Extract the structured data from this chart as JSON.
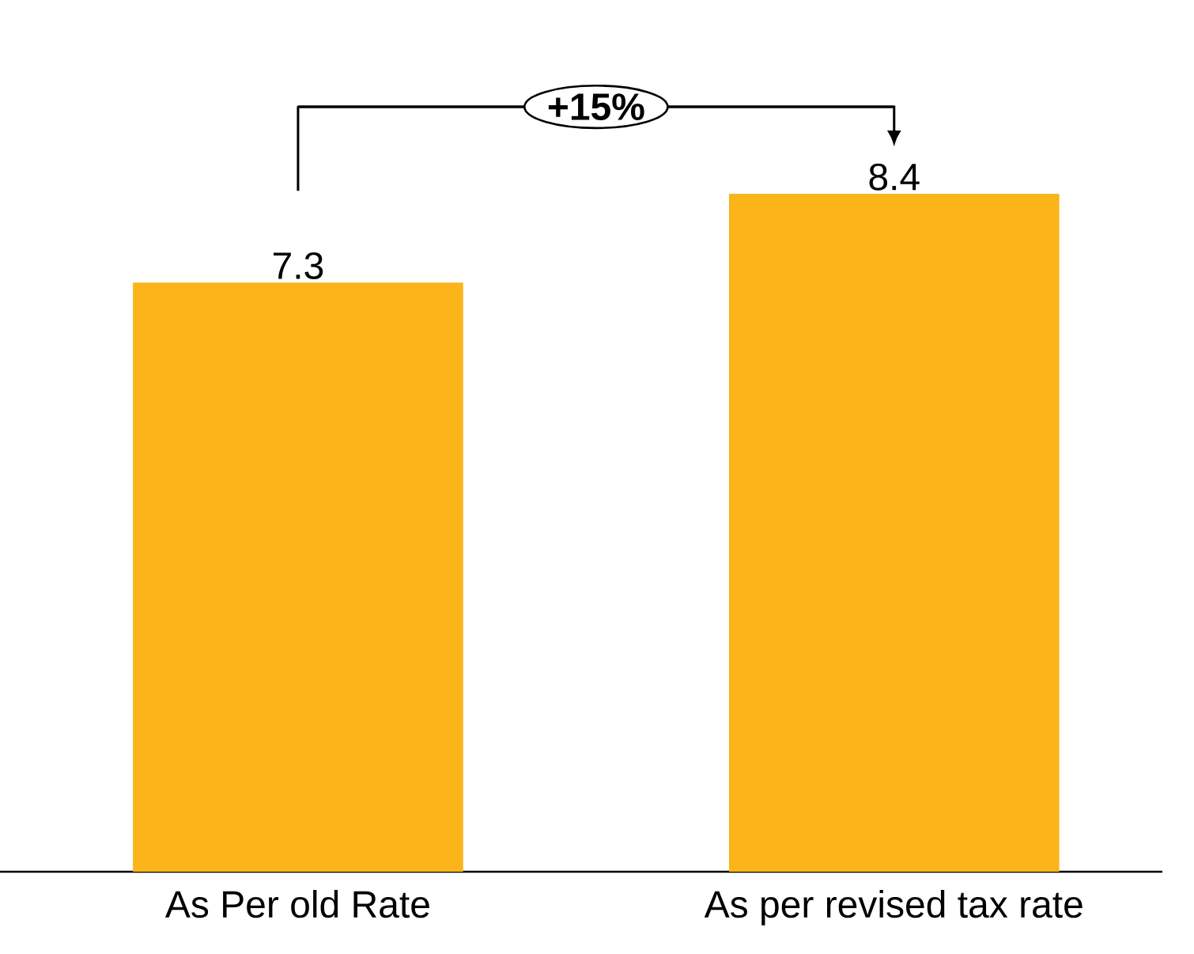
{
  "chart_data": {
    "type": "bar",
    "categories": [
      "As Per old Rate",
      "As per revised tax rate"
    ],
    "values": [
      7.3,
      8.4
    ],
    "color": "#fbb41a",
    "data_labels": true,
    "annotations": [
      "+15%"
    ]
  }
}
